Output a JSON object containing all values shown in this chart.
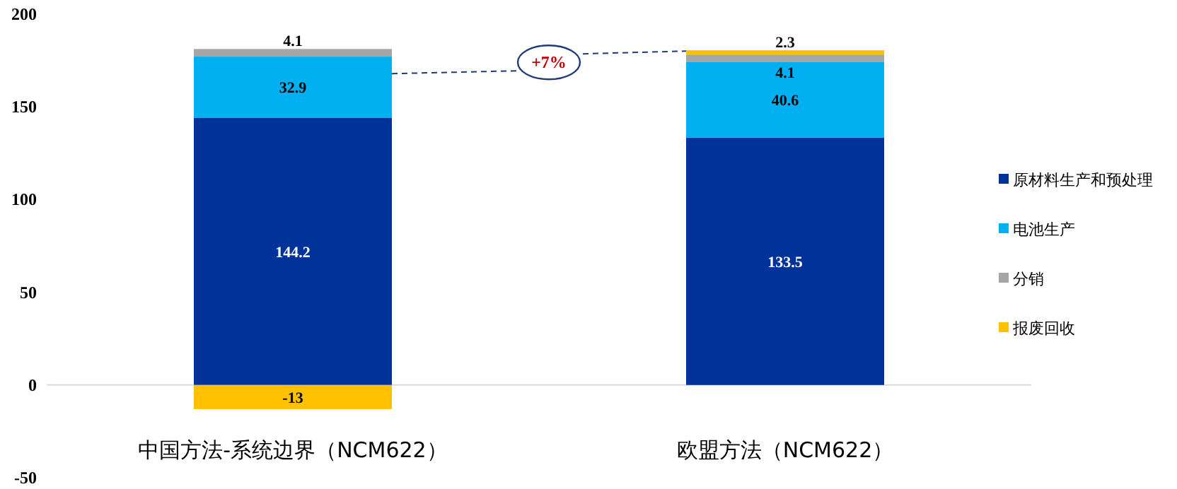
{
  "chart_data": {
    "type": "bar",
    "stacked": true,
    "categories": [
      "中国方法-系统边界（NCM622）",
      "欧盟方法（NCM622）"
    ],
    "series": [
      {
        "name": "原材料生产和预处理",
        "color": "#003399",
        "values": [
          144.2,
          133.5
        ]
      },
      {
        "name": "电池生产",
        "color": "#00b0f0",
        "values": [
          32.9,
          40.6
        ]
      },
      {
        "name": "分销",
        "color": "#a6a6a6",
        "values": [
          4.1,
          4.1
        ]
      },
      {
        "name": "报废回收",
        "color": "#ffc000",
        "values": [
          -13,
          2.3
        ]
      }
    ],
    "ylim": [
      -50,
      200
    ],
    "yticks": [
      -50,
      0,
      50,
      100,
      150,
      200
    ],
    "data_labels": true,
    "grid": false,
    "legend": "right",
    "annotations": [
      {
        "text": "+7%",
        "y": 174
      }
    ]
  }
}
